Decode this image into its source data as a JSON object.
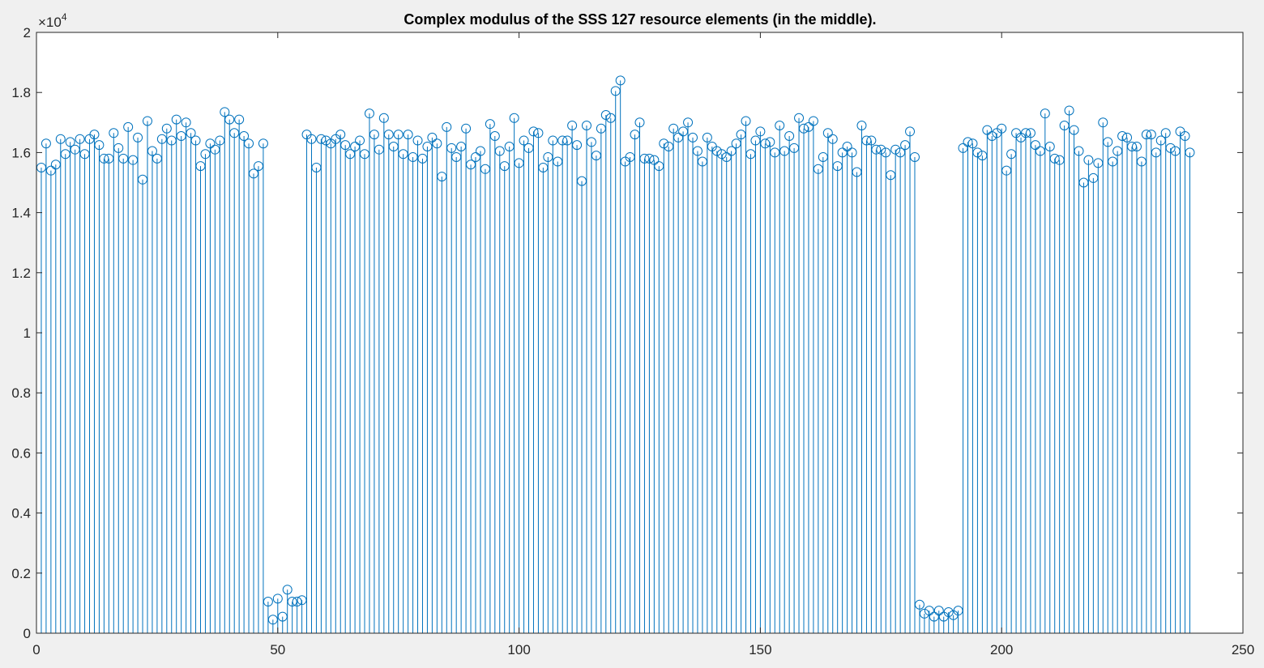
{
  "chart_data": {
    "type": "stem",
    "title": "Complex modulus of the SSS 127 resource elements (in the middle).",
    "xlabel": "",
    "ylabel": "",
    "xlim": [
      0,
      250
    ],
    "ylim": [
      0,
      20000
    ],
    "xticks": [
      "0",
      "50",
      "100",
      "150",
      "200",
      "250"
    ],
    "yticks": [
      "0",
      "0.2",
      "0.4",
      "0.6",
      "0.8",
      "1",
      "1.2",
      "1.4",
      "1.6",
      "1.8",
      "2"
    ],
    "y_exponent": {
      "base": "×10",
      "power": "4"
    },
    "grid": false,
    "marker": "circle",
    "color": "#0072bd",
    "x_start": 1,
    "values": [
      15500,
      16300,
      15400,
      15600,
      16450,
      15950,
      16350,
      16100,
      16450,
      15950,
      16450,
      16600,
      16250,
      15800,
      15800,
      16650,
      16150,
      15800,
      16850,
      15750,
      16500,
      15100,
      17050,
      16050,
      15800,
      16450,
      16800,
      16400,
      17100,
      16550,
      17000,
      16650,
      16400,
      15550,
      15950,
      16300,
      16100,
      16400,
      17350,
      17100,
      16650,
      17100,
      16550,
      16300,
      15300,
      15550,
      16300,
      1050,
      450,
      1150,
      550,
      1450,
      1050,
      1050,
      1100,
      16600,
      16450,
      15500,
      16450,
      16400,
      16300,
      16450,
      16600,
      16250,
      15950,
      16200,
      16400,
      15950,
      17300,
      16600,
      16100,
      17150,
      16600,
      16200,
      16600,
      15950,
      16600,
      15850,
      16400,
      15800,
      16200,
      16500,
      16300,
      15200,
      16850,
      16150,
      15850,
      16200,
      16800,
      15600,
      15850,
      16050,
      15450,
      16950,
      16550,
      16050,
      15550,
      16200,
      17150,
      15650,
      16400,
      16150,
      16700,
      16650,
      15500,
      15850,
      16400,
      15700,
      16400,
      16400,
      16900,
      16250,
      15050,
      16900,
      16350,
      15900,
      16800,
      17250,
      17150,
      18050,
      18400,
      15700,
      15850,
      16600,
      17000,
      15800,
      15800,
      15750,
      15550,
      16300,
      16200,
      16800,
      16500,
      16700,
      17000,
      16500,
      16050,
      15700,
      16500,
      16200,
      16050,
      15950,
      15850,
      16050,
      16300,
      16600,
      17050,
      15950,
      16400,
      16700,
      16300,
      16350,
      16000,
      16900,
      16050,
      16550,
      16150,
      17150,
      16800,
      16850,
      17050,
      15450,
      15850,
      16650,
      16450,
      15550,
      16000,
      16200,
      16000,
      15350,
      16900,
      16400,
      16400,
      16100,
      16100,
      16000,
      15250,
      16100,
      16000,
      16250,
      16700,
      15850,
      950,
      650,
      750,
      550,
      750,
      550,
      700,
      600,
      750,
      16150,
      16350,
      16300,
      16000,
      15900,
      16750,
      16550,
      16650,
      16800,
      15400,
      15950,
      16650,
      16500,
      16650,
      16650,
      16250,
      16050,
      17300,
      16200,
      15800,
      15750,
      16900,
      17400,
      16750,
      16050,
      15000,
      15750,
      15150,
      15650,
      17000,
      16350,
      15700,
      16050,
      16550,
      16500,
      16200,
      16200,
      15700,
      16600,
      16600,
      16000,
      16400,
      16650,
      16150,
      16050,
      16700,
      16550,
      16000
    ]
  }
}
